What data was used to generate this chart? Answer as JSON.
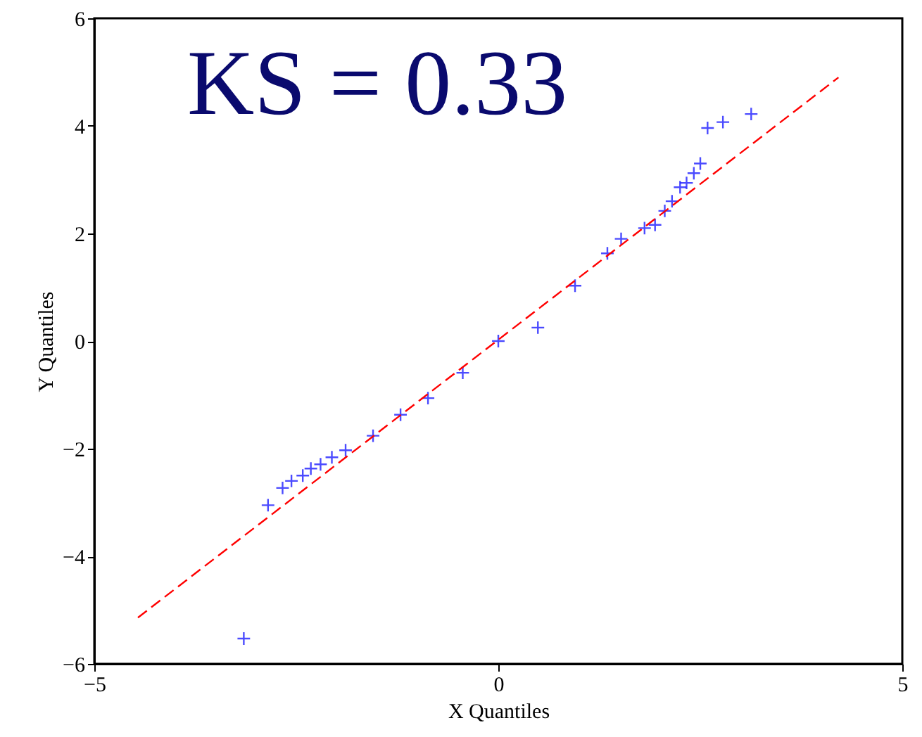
{
  "chart_data": {
    "type": "scatter",
    "xlabel": "X Quantiles",
    "ylabel": "Y Quantiles",
    "annotations": [
      "KS = 0.33"
    ],
    "xlim": [
      -5,
      5
    ],
    "xticks": [
      -5,
      0,
      5
    ],
    "ylim": [
      -6,
      6
    ],
    "yticks": [
      -6,
      -4,
      -2,
      0,
      2,
      4,
      6
    ],
    "grid": false,
    "series": [
      {
        "color": "#0000ff",
        "marker": "cross",
        "x": [
          -3.15,
          -2.85,
          -2.67,
          -2.56,
          -2.42,
          -2.32,
          -2.2,
          -2.06,
          -1.89,
          -1.55,
          -1.21,
          -0.87,
          -0.44,
          0,
          0.49,
          0.95,
          1.35,
          1.52,
          1.81,
          1.94,
          2.06,
          2.15,
          2.25,
          2.33,
          2.42,
          2.5,
          2.59,
          2.78,
          3.13
        ],
        "values": [
          -5.53,
          -3.05,
          -2.73,
          -2.6,
          -2.5,
          -2.37,
          -2.29,
          -2.16,
          -2.03,
          -1.76,
          -1.37,
          -1.06,
          -0.59,
          0,
          0.25,
          1.03,
          1.63,
          1.9,
          2.1,
          2.16,
          2.42,
          2.6,
          2.86,
          2.94,
          3.12,
          3.3,
          3.96,
          4.07,
          4.22
        ]
      },
      {
        "type": "line",
        "color": "#ff0000",
        "line_style": "dashed",
        "x": [
          -4.46,
          4.21
        ],
        "values": [
          -5.14,
          4.9
        ]
      }
    ]
  }
}
